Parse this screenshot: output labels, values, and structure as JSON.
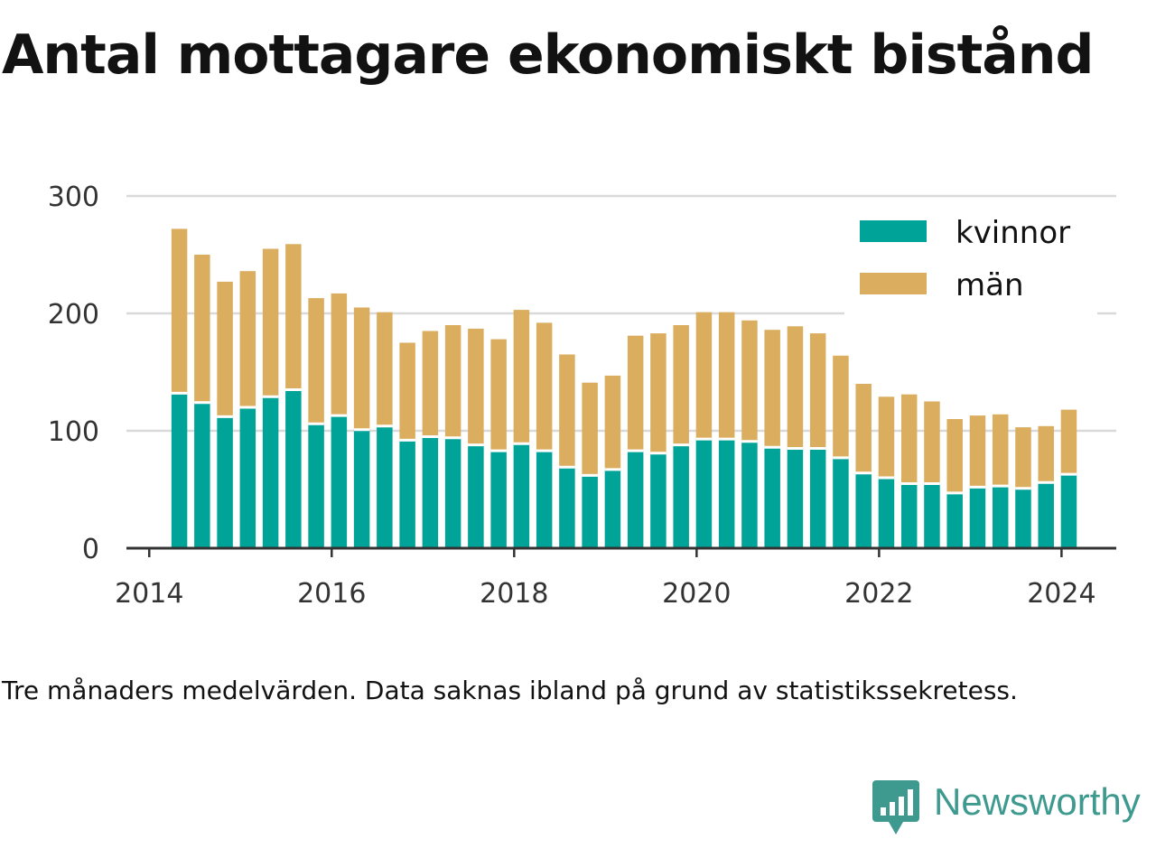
{
  "title": "Antal mottagare ekonomiskt bistånd",
  "caption": "Tre månaders medelvärden. Data saknas ibland på grund av statistikssekretess.",
  "brand": {
    "name": "Newsworthy",
    "icon": "newsworthy-logo-icon",
    "color": "#3e9a8f"
  },
  "chart_data": {
    "type": "bar",
    "stacked": true,
    "title": "Antal mottagare ekonomiskt bistånd",
    "xlabel": "",
    "ylabel": "",
    "ylim": [
      0,
      300
    ],
    "yticks": [
      0,
      100,
      200,
      300
    ],
    "xlim": [
      2013.75,
      2024.6
    ],
    "xticks": [
      2014,
      2016,
      2018,
      2020,
      2022,
      2024
    ],
    "grid": true,
    "legend_position": "top-right",
    "x": [
      2014.33,
      2014.58,
      2014.83,
      2015.08,
      2015.33,
      2015.58,
      2015.83,
      2016.08,
      2016.33,
      2016.58,
      2016.83,
      2017.08,
      2017.33,
      2017.58,
      2017.83,
      2018.08,
      2018.33,
      2018.58,
      2018.83,
      2019.08,
      2019.33,
      2019.58,
      2019.83,
      2020.08,
      2020.33,
      2020.58,
      2020.83,
      2021.08,
      2021.33,
      2021.58,
      2021.83,
      2022.08,
      2022.33,
      2022.58,
      2022.83,
      2023.08,
      2023.33,
      2023.58,
      2023.83,
      2024.08
    ],
    "series": [
      {
        "name": "kvinnor",
        "color": "#00a398",
        "values": [
          132,
          124,
          112,
          120,
          129,
          135,
          106,
          113,
          101,
          104,
          92,
          95,
          94,
          88,
          83,
          89,
          83,
          69,
          62,
          67,
          83,
          81,
          88,
          93,
          93,
          91,
          86,
          85,
          85,
          77,
          64,
          60,
          55,
          55,
          47,
          52,
          53,
          51,
          56,
          63
        ]
      },
      {
        "name": "män",
        "color": "#dbae5f",
        "values": [
          140,
          126,
          115,
          116,
          126,
          124,
          107,
          104,
          104,
          97,
          83,
          90,
          96,
          99,
          95,
          114,
          109,
          96,
          79,
          80,
          98,
          102,
          102,
          108,
          108,
          103,
          100,
          104,
          98,
          87,
          76,
          69,
          76,
          70,
          63,
          61,
          61,
          52,
          48,
          55
        ]
      }
    ]
  }
}
